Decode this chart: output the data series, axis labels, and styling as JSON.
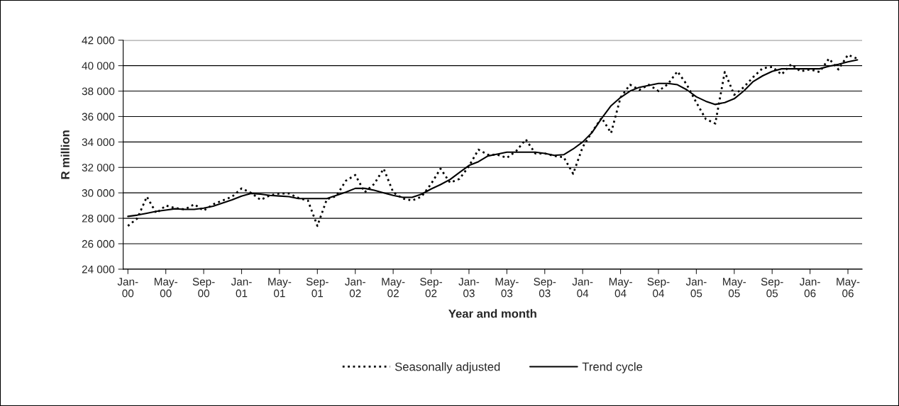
{
  "chart_data": {
    "type": "line",
    "xlabel": "Year and month",
    "ylabel": "R million",
    "categories": [
      "Jan-00",
      null,
      null,
      null,
      "May-00",
      null,
      null,
      null,
      "Sep-00",
      null,
      null,
      null,
      "Jan-01",
      null,
      null,
      null,
      "May-01",
      null,
      null,
      null,
      "Sep-01",
      null,
      null,
      null,
      "Jan-02",
      null,
      null,
      null,
      "May-02",
      null,
      null,
      null,
      "Sep-02",
      null,
      null,
      null,
      "Jan-03",
      null,
      null,
      null,
      "May-03",
      null,
      null,
      null,
      "Sep-03",
      null,
      null,
      null,
      "Jan-04",
      null,
      null,
      null,
      "May-04",
      null,
      null,
      null,
      "Sep-04",
      null,
      null,
      null,
      "Jan-05",
      null,
      null,
      null,
      "May-05",
      null,
      null,
      null,
      "Sep-05",
      null,
      null,
      null,
      "Jan-06",
      null,
      null,
      null,
      "May-06",
      null
    ],
    "series": [
      {
        "name": "Seasonally adjusted",
        "color": "#000000",
        "line_style": "dotted",
        "values": [
          27400,
          28000,
          29700,
          28400,
          29000,
          28800,
          28700,
          29100,
          28600,
          29100,
          29400,
          29700,
          30350,
          30000,
          29450,
          29800,
          29950,
          29950,
          29600,
          29400,
          27400,
          29500,
          29750,
          30950,
          31400,
          30050,
          30700,
          31900,
          30050,
          29550,
          29400,
          29700,
          30700,
          31900,
          30800,
          31100,
          32100,
          33400,
          33000,
          33000,
          32750,
          33300,
          34200,
          33100,
          33100,
          32900,
          32800,
          31500,
          33600,
          34800,
          35900,
          34700,
          37500,
          38500,
          38100,
          38500,
          38000,
          38550,
          39550,
          38500,
          37100,
          35800,
          35450,
          39500,
          37700,
          38300,
          39100,
          39800,
          39900,
          39300,
          40100,
          39550,
          39700,
          39500,
          40550,
          39700,
          40850,
          40550
        ]
      },
      {
        "name": "Trend cycle",
        "color": "#000000",
        "line_style": "solid",
        "values": [
          28150,
          28250,
          28400,
          28550,
          28650,
          28750,
          28700,
          28700,
          28800,
          28950,
          29200,
          29450,
          29750,
          29950,
          29900,
          29800,
          29750,
          29700,
          29550,
          29550,
          29550,
          29550,
          29800,
          30050,
          30350,
          30350,
          30200,
          30000,
          29800,
          29650,
          29650,
          29900,
          30300,
          30650,
          31050,
          31600,
          32150,
          32450,
          32900,
          33050,
          33200,
          33200,
          33200,
          33200,
          33100,
          32950,
          33000,
          33450,
          34000,
          34750,
          35850,
          36850,
          37500,
          38000,
          38300,
          38450,
          38600,
          38600,
          38500,
          38100,
          37550,
          37200,
          36950,
          37100,
          37400,
          38000,
          38750,
          39200,
          39550,
          39750,
          39750,
          39750,
          39750,
          39750,
          39950,
          40100,
          40300,
          40450
        ]
      }
    ],
    "ylim": [
      24000,
      42000
    ],
    "yticks": [
      {
        "value": 24000,
        "label": "24 000"
      },
      {
        "value": 26000,
        "label": "26 000"
      },
      {
        "value": 28000,
        "label": "28 000"
      },
      {
        "value": 30000,
        "label": "30 000"
      },
      {
        "value": 32000,
        "label": "32 000"
      },
      {
        "value": 34000,
        "label": "34 000"
      },
      {
        "value": 36000,
        "label": "36 000"
      },
      {
        "value": 38000,
        "label": "38 000"
      },
      {
        "value": 40000,
        "label": "40 000"
      },
      {
        "value": 42000,
        "label": "42 000"
      }
    ],
    "grid": "y",
    "legend": "bottom",
    "marker": "none"
  }
}
